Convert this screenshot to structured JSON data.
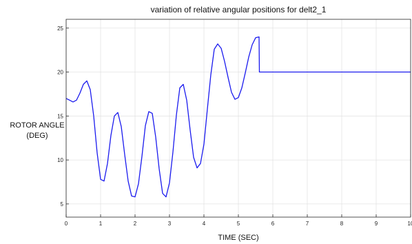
{
  "chart_data": {
    "type": "line",
    "title": "variation of relative angular positions for delt2_1",
    "xlabel": "TIME (SEC)",
    "ylabel_lines": [
      "ROTOR ANGLE",
      "(DEG)"
    ],
    "xlim": [
      0,
      10
    ],
    "ylim": [
      3.5,
      26
    ],
    "xticks": [
      0,
      1,
      2,
      3,
      4,
      5,
      6,
      7,
      8,
      9,
      10
    ],
    "xtick_labels": [
      "0",
      "1",
      "2",
      "3",
      "4",
      "5",
      "6",
      "7",
      "8",
      "9",
      "10"
    ],
    "yticks": [
      5,
      10,
      15,
      20,
      25
    ],
    "ytick_labels": [
      "5",
      "10",
      "15",
      "20",
      "25"
    ],
    "grid": true,
    "line_color": "#1a1aee",
    "grid_color": "#e3e3e3",
    "series": [
      {
        "x": [
          0,
          0.1,
          0.2,
          0.3,
          0.4,
          0.5,
          0.6,
          0.7,
          0.8,
          0.9,
          1.0,
          1.1,
          1.2,
          1.3,
          1.4,
          1.5,
          1.6,
          1.7,
          1.8,
          1.9,
          2.0,
          2.1,
          2.2,
          2.3,
          2.4,
          2.5,
          2.6,
          2.7,
          2.8,
          2.9,
          3.0,
          3.1,
          3.2,
          3.3,
          3.4,
          3.5,
          3.6,
          3.7,
          3.8,
          3.9,
          4.0,
          4.1,
          4.2,
          4.3,
          4.4,
          4.5,
          4.6,
          4.7,
          4.8,
          4.9,
          5.0,
          5.1,
          5.2,
          5.3,
          5.4,
          5.5,
          5.6,
          5.61,
          5.7,
          6,
          7,
          8,
          9,
          10
        ],
        "y": [
          17.0,
          16.8,
          16.6,
          16.8,
          17.6,
          18.6,
          19.0,
          18.0,
          15.0,
          10.8,
          7.8,
          7.6,
          9.6,
          12.8,
          15.0,
          15.4,
          13.8,
          10.6,
          7.6,
          5.9,
          5.8,
          7.3,
          10.4,
          13.9,
          15.5,
          15.3,
          12.6,
          9.0,
          6.2,
          5.8,
          7.4,
          10.9,
          15.1,
          18.2,
          18.6,
          16.8,
          13.4,
          10.3,
          9.1,
          9.6,
          11.8,
          15.8,
          19.7,
          22.6,
          23.2,
          22.7,
          21.2,
          19.4,
          17.7,
          16.9,
          17.1,
          18.2,
          19.9,
          21.7,
          23.1,
          23.9,
          24.0,
          20.0,
          20.0,
          20.0,
          20.0,
          20.0,
          20.0,
          20.0
        ]
      }
    ]
  }
}
